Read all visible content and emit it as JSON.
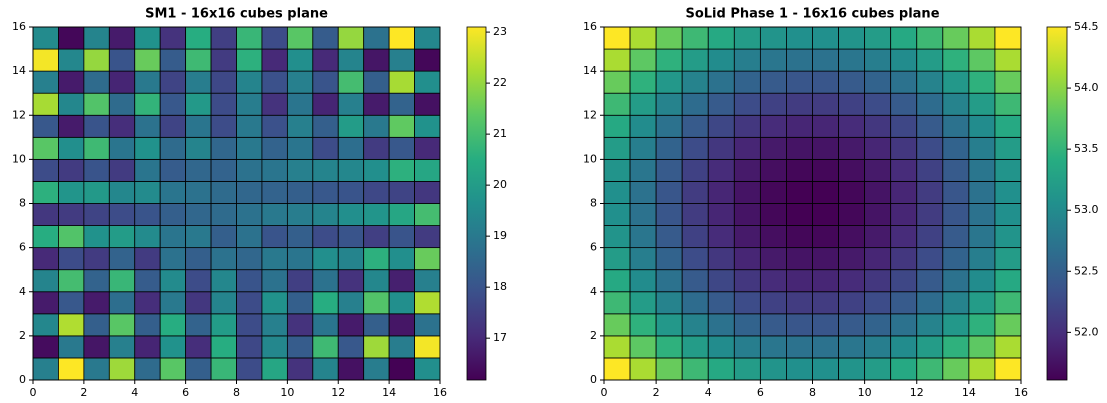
{
  "chart_data": [
    {
      "type": "heatmap",
      "title": "SM1 - 16x16 cubes plane",
      "colormap": "viridis",
      "xlim": [
        0,
        16
      ],
      "ylim": [
        0,
        16
      ],
      "xticks": [
        0,
        2,
        4,
        6,
        8,
        10,
        12,
        14,
        16
      ],
      "yticks": [
        0,
        2,
        4,
        6,
        8,
        10,
        12,
        14,
        16
      ],
      "clim": [
        16.18,
        23.1
      ],
      "cticks": [
        17,
        18,
        19,
        20,
        21,
        22,
        23
      ],
      "z": [
        [
          19.2,
          23.1,
          19.0,
          22.1,
          18.6,
          21.3,
          18.3,
          20.8,
          17.8,
          20.3,
          17.2,
          19.3,
          16.5,
          19.1,
          16.2,
          19.6
        ],
        [
          16.4,
          19.0,
          16.6,
          19.2,
          16.9,
          19.7,
          17.1,
          20.5,
          17.7,
          19.4,
          18.2,
          20.9,
          18.1,
          22.1,
          19.1,
          23.0
        ],
        [
          19.4,
          22.3,
          18.3,
          21.3,
          18.3,
          20.5,
          18.4,
          20.0,
          17.8,
          19.2,
          17.2,
          18.9,
          16.7,
          18.3,
          16.6,
          18.8
        ],
        [
          16.7,
          18.1,
          16.7,
          18.7,
          17.1,
          19.0,
          17.3,
          19.3,
          17.8,
          19.7,
          18.3,
          20.5,
          19.2,
          21.2,
          19.6,
          22.3
        ],
        [
          19.3,
          21.0,
          18.4,
          20.8,
          18.2,
          19.5,
          17.8,
          19.4,
          18.0,
          18.8,
          17.5,
          18.8,
          17.2,
          19.4,
          16.8,
          19.2
        ],
        [
          17.0,
          17.8,
          17.4,
          18.4,
          17.4,
          18.8,
          18.3,
          18.8,
          18.5,
          19.0,
          18.9,
          19.6,
          19.3,
          20.6,
          19.6,
          21.5
        ],
        [
          20.5,
          21.2,
          19.7,
          20.0,
          19.5,
          18.9,
          19.0,
          18.3,
          18.8,
          18.0,
          18.3,
          17.8,
          18.0,
          17.5,
          18.0,
          17.4
        ],
        [
          17.3,
          17.4,
          17.6,
          17.8,
          18.0,
          18.3,
          18.5,
          18.6,
          18.8,
          19.0,
          19.1,
          19.3,
          19.6,
          19.8,
          20.3,
          21.0
        ],
        [
          20.6,
          19.8,
          19.9,
          19.4,
          19.5,
          18.9,
          18.8,
          18.6,
          18.5,
          18.4,
          18.3,
          18.1,
          18.0,
          17.7,
          17.6,
          17.3
        ],
        [
          17.8,
          17.4,
          18.0,
          17.4,
          18.9,
          18.2,
          18.5,
          18.4,
          18.8,
          18.9,
          19.2,
          19.3,
          19.4,
          19.6,
          20.6,
          20.3
        ],
        [
          21.3,
          19.6,
          20.9,
          18.9,
          19.7,
          18.6,
          19.3,
          18.5,
          19.0,
          18.4,
          18.9,
          17.8,
          18.7,
          17.4,
          18.1,
          17.0
        ],
        [
          18.1,
          16.7,
          18.0,
          17.1,
          18.8,
          17.6,
          18.9,
          17.8,
          19.0,
          17.9,
          19.2,
          18.3,
          20.0,
          19.0,
          21.4,
          19.7
        ],
        [
          22.2,
          19.4,
          21.2,
          18.6,
          20.7,
          18.1,
          19.9,
          17.8,
          19.1,
          17.2,
          18.9,
          16.9,
          19.2,
          16.7,
          18.4,
          16.5
        ],
        [
          19.2,
          16.7,
          18.6,
          16.9,
          19.0,
          17.6,
          19.1,
          17.7,
          19.3,
          17.9,
          19.2,
          18.0,
          21.0,
          18.3,
          22.2,
          19.6
        ],
        [
          23.0,
          19.4,
          22.0,
          18.0,
          21.5,
          18.2,
          20.9,
          17.4,
          20.6,
          17.0,
          19.6,
          17.0,
          19.3,
          16.6,
          19.2,
          16.3
        ],
        [
          19.5,
          16.3,
          19.3,
          16.7,
          19.7,
          17.2,
          20.5,
          17.5,
          20.8,
          17.8,
          21.3,
          18.2,
          22.0,
          18.8,
          23.1,
          19.4
        ]
      ]
    },
    {
      "type": "heatmap",
      "title": "SoLid Phase 1 - 16x16 cubes plane",
      "colormap": "viridis",
      "xlim": [
        0,
        16
      ],
      "ylim": [
        0,
        16
      ],
      "xticks": [
        0,
        2,
        4,
        6,
        8,
        10,
        12,
        14,
        16
      ],
      "yticks": [
        0,
        2,
        4,
        6,
        8,
        10,
        12,
        14,
        16
      ],
      "clim": [
        51.61,
        54.5
      ],
      "cticks": [
        {
          "value": 52,
          "label": "52.0"
        },
        52.5,
        {
          "value": 53,
          "label": "53.0"
        },
        53.5,
        {
          "value": 54,
          "label": "54.0"
        },
        54.5
      ],
      "z": [
        [
          54.5,
          54.14,
          53.83,
          53.57,
          53.37,
          53.21,
          53.11,
          53.06,
          53.06,
          53.11,
          53.21,
          53.37,
          53.57,
          53.83,
          54.14,
          54.5
        ],
        [
          54.14,
          53.78,
          53.47,
          53.21,
          53.01,
          52.85,
          52.75,
          52.7,
          52.7,
          52.75,
          52.85,
          53.01,
          53.21,
          53.47,
          53.78,
          54.14
        ],
        [
          53.83,
          53.47,
          53.16,
          52.9,
          52.7,
          52.54,
          52.44,
          52.39,
          52.39,
          52.44,
          52.54,
          52.7,
          52.9,
          53.16,
          53.47,
          53.83
        ],
        [
          53.57,
          53.21,
          52.9,
          52.64,
          52.44,
          52.28,
          52.18,
          52.13,
          52.13,
          52.18,
          52.28,
          52.44,
          52.64,
          52.9,
          53.21,
          53.57
        ],
        [
          53.37,
          53.01,
          52.7,
          52.44,
          52.23,
          52.08,
          51.97,
          51.92,
          51.92,
          51.97,
          52.08,
          52.23,
          52.44,
          52.7,
          53.01,
          53.37
        ],
        [
          53.21,
          52.85,
          52.54,
          52.28,
          52.08,
          51.92,
          51.82,
          51.77,
          51.77,
          51.82,
          51.92,
          52.08,
          52.28,
          52.54,
          52.85,
          53.21
        ],
        [
          53.11,
          52.75,
          52.44,
          52.18,
          51.97,
          51.82,
          51.72,
          51.66,
          51.66,
          51.72,
          51.82,
          51.97,
          52.18,
          52.44,
          52.75,
          53.11
        ],
        [
          53.06,
          52.7,
          52.39,
          52.13,
          51.92,
          51.77,
          51.66,
          51.61,
          51.61,
          51.66,
          51.77,
          51.92,
          52.13,
          52.39,
          52.7,
          53.06
        ],
        [
          53.06,
          52.7,
          52.39,
          52.13,
          51.92,
          51.77,
          51.66,
          51.61,
          51.61,
          51.66,
          51.77,
          51.92,
          52.13,
          52.39,
          52.7,
          53.06
        ],
        [
          53.11,
          52.75,
          52.44,
          52.18,
          51.97,
          51.82,
          51.72,
          51.66,
          51.66,
          51.72,
          51.82,
          51.97,
          52.18,
          52.44,
          52.75,
          53.11
        ],
        [
          53.21,
          52.85,
          52.54,
          52.28,
          52.08,
          51.92,
          51.82,
          51.77,
          51.77,
          51.82,
          51.92,
          52.08,
          52.28,
          52.54,
          52.85,
          53.21
        ],
        [
          53.37,
          53.01,
          52.7,
          52.44,
          52.23,
          52.08,
          51.97,
          51.92,
          51.92,
          51.97,
          52.08,
          52.23,
          52.44,
          52.7,
          53.01,
          53.37
        ],
        [
          53.57,
          53.21,
          52.9,
          52.64,
          52.44,
          52.28,
          52.18,
          52.13,
          52.13,
          52.18,
          52.28,
          52.44,
          52.64,
          52.9,
          53.21,
          53.57
        ],
        [
          53.83,
          53.47,
          53.16,
          52.9,
          52.7,
          52.54,
          52.44,
          52.39,
          52.39,
          52.44,
          52.54,
          52.7,
          52.9,
          53.16,
          53.47,
          53.83
        ],
        [
          54.14,
          53.78,
          53.47,
          53.21,
          53.01,
          52.85,
          52.75,
          52.7,
          52.7,
          52.75,
          52.85,
          53.01,
          53.21,
          53.47,
          53.78,
          54.14
        ],
        [
          54.5,
          54.14,
          53.83,
          53.57,
          53.37,
          53.21,
          53.11,
          53.06,
          53.06,
          53.11,
          53.21,
          53.37,
          53.57,
          53.83,
          54.14,
          54.5
        ]
      ]
    }
  ]
}
